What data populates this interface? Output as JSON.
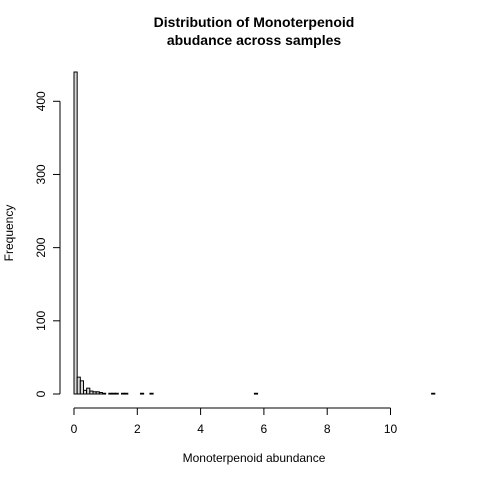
{
  "chart_data": {
    "type": "bar",
    "title": [
      "Distribution of Monoterpenoid",
      "abudance across samples"
    ],
    "xlabel": "Monoterpenoid abundance",
    "ylabel": "Frequency",
    "xlim": [
      0,
      11.4
    ],
    "ylim": [
      0,
      440
    ],
    "xticks": [
      0,
      2,
      4,
      6,
      8,
      10
    ],
    "yticks": [
      0,
      100,
      200,
      300,
      400
    ],
    "bin_width": 0.1,
    "bins": [
      {
        "x0": 0.0,
        "x1": 0.1,
        "count": 440
      },
      {
        "x0": 0.1,
        "x1": 0.2,
        "count": 23
      },
      {
        "x0": 0.2,
        "x1": 0.3,
        "count": 18
      },
      {
        "x0": 0.3,
        "x1": 0.4,
        "count": 5
      },
      {
        "x0": 0.4,
        "x1": 0.5,
        "count": 8
      },
      {
        "x0": 0.5,
        "x1": 0.6,
        "count": 4
      },
      {
        "x0": 0.6,
        "x1": 0.7,
        "count": 3
      },
      {
        "x0": 0.7,
        "x1": 0.8,
        "count": 3
      },
      {
        "x0": 0.8,
        "x1": 0.9,
        "count": 2
      },
      {
        "x0": 0.9,
        "x1": 1.0,
        "count": 1
      },
      {
        "x0": 1.0,
        "x1": 1.1,
        "count": 0
      },
      {
        "x0": 1.1,
        "x1": 1.2,
        "count": 1
      },
      {
        "x0": 1.2,
        "x1": 1.3,
        "count": 1
      },
      {
        "x0": 1.3,
        "x1": 1.4,
        "count": 1
      },
      {
        "x0": 1.4,
        "x1": 1.5,
        "count": 0
      },
      {
        "x0": 1.5,
        "x1": 1.6,
        "count": 1
      },
      {
        "x0": 1.6,
        "x1": 1.7,
        "count": 1
      },
      {
        "x0": 1.7,
        "x1": 1.8,
        "count": 0
      },
      {
        "x0": 2.1,
        "x1": 2.2,
        "count": 1
      },
      {
        "x0": 2.4,
        "x1": 2.5,
        "count": 1
      },
      {
        "x0": 5.7,
        "x1": 5.8,
        "count": 1
      },
      {
        "x0": 11.3,
        "x1": 11.4,
        "count": 1
      }
    ]
  }
}
